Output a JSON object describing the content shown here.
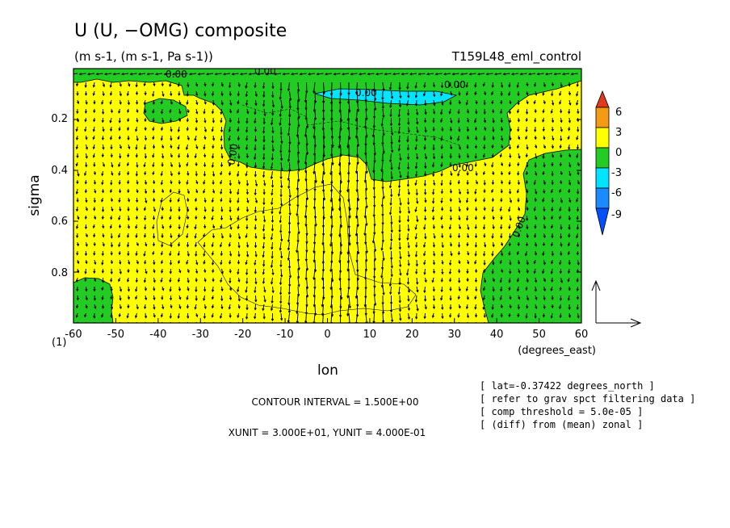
{
  "chart_data": {
    "type": "heatmap",
    "title": "U (U, −OMG) composite",
    "subtitle": "(m s-1, (m s-1, Pa s-1))",
    "run_label": "T159L48_eml_control",
    "xlabel": "lon",
    "x_units": "(degrees_east)",
    "ylabel": "sigma",
    "y_corner_label": "(1)",
    "xlim": [
      -60,
      60
    ],
    "ylim": [
      1.0,
      0.0
    ],
    "x_ticks": [
      "-60",
      "-50",
      "-40",
      "-30",
      "-20",
      "-10",
      "0",
      "10",
      "20",
      "30",
      "40",
      "50",
      "60"
    ],
    "y_ticks": [
      "0.2",
      "0.4",
      "0.6",
      "0.8"
    ],
    "colorbar": {
      "levels": [
        "6",
        "3",
        "0",
        "-3",
        "-6",
        "-9"
      ],
      "colors": [
        "#e03a1e",
        "#f59a14",
        "#ffff00",
        "#22cc22",
        "#00e5ff",
        "#1a8cff",
        "#0050ff"
      ]
    },
    "contour_labels": [
      "0.00",
      "0.00",
      "0.00",
      "0.00",
      "0.00",
      "0.00",
      "0.00"
    ],
    "contour_interval": "CONTOUR INTERVAL = 1.500E+00",
    "vector_units": "XUNIT = 3.000E+01, YUNIT = 4.000E-01",
    "info": [
      "[ lat=-0.37422 degrees_north ]",
      "[ refer to grav spct filtering data ]",
      "[ comp threshold = 5.0e-05 ]",
      "[ (diff) from (mean) zonal ]"
    ]
  }
}
